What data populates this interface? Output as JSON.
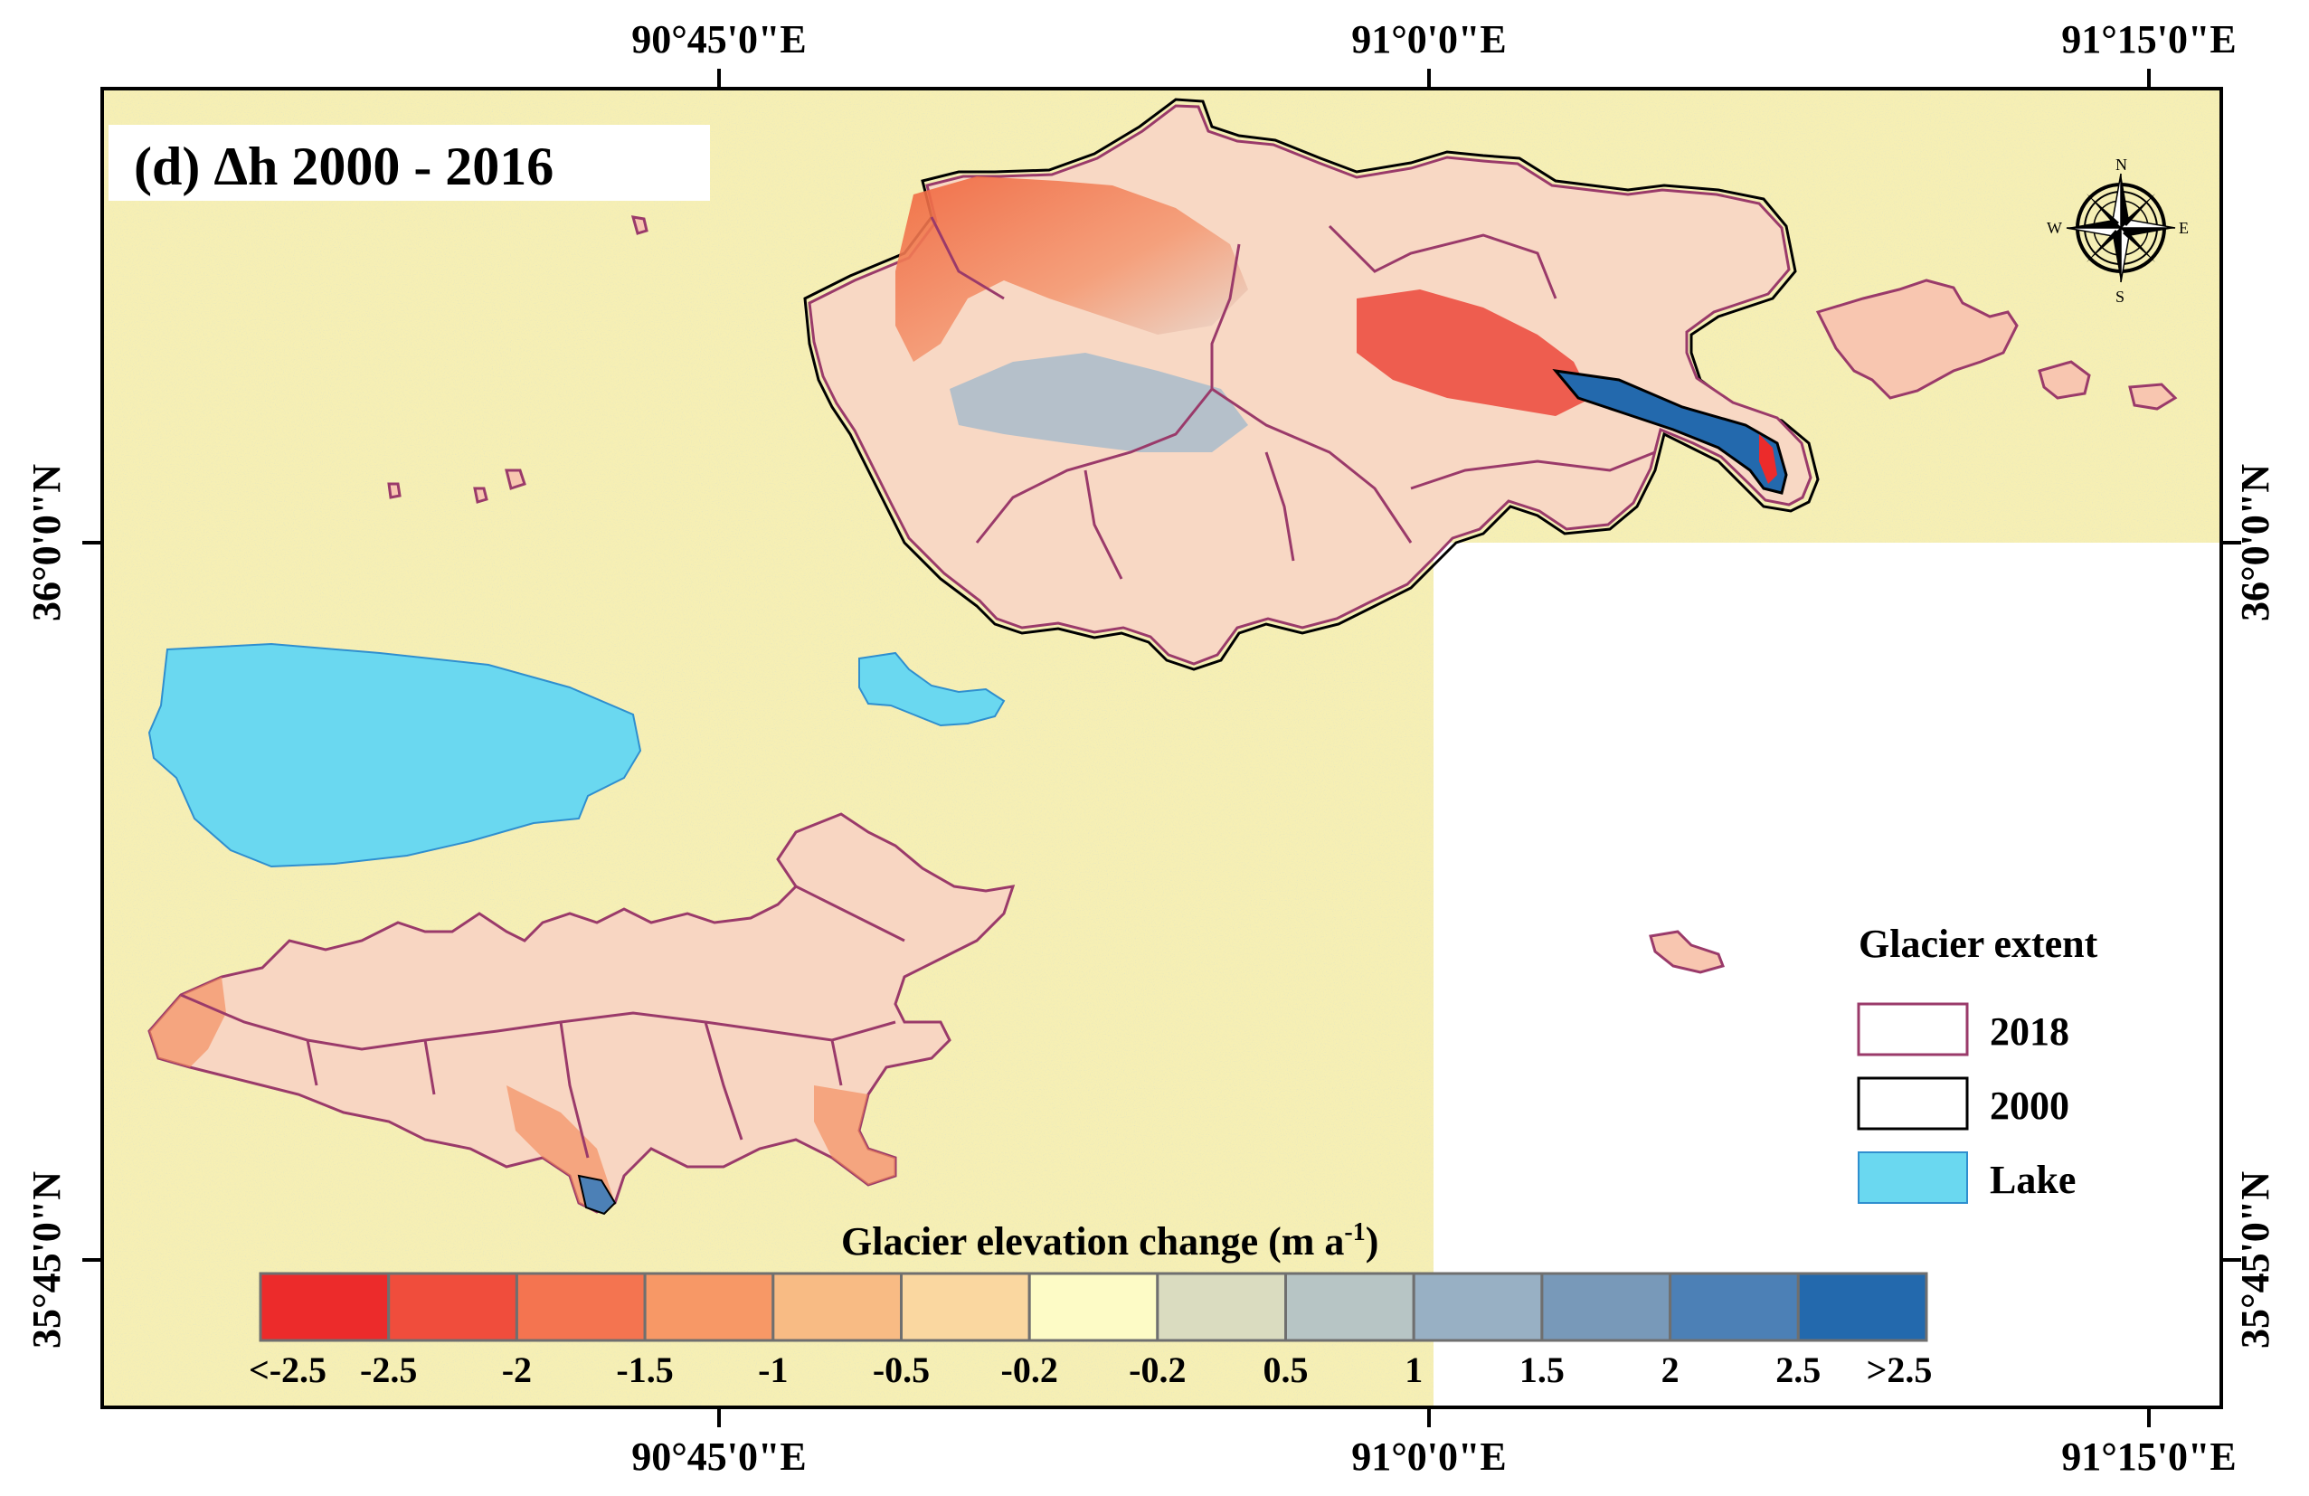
{
  "map": {
    "title": "(d) Δh 2000 - 2016",
    "top_lon_labels": [
      "90°45'0\"E",
      "91°0'0\"E",
      "91°15'0\"E"
    ],
    "bottom_lon_labels": [
      "90°45'0\"E",
      "91°0'0\"E",
      "91°15'0\"E"
    ],
    "left_lat_labels": [
      "36°0'0\"N",
      "35°45'0\"N"
    ],
    "right_lat_labels": [
      "36°0'0\"N",
      "35°45'0\"N"
    ],
    "colors": {
      "background": "#f6efb4",
      "lake": "#6ad8f0",
      "outline_2018": "#9a3a6a",
      "outline_2000": "#000000",
      "nodata": "#ffffff"
    }
  },
  "compass": {
    "n": "N",
    "s": "S",
    "e": "E",
    "w": "W"
  },
  "legend": {
    "title": "Glacier extent",
    "items": [
      {
        "label": "2018",
        "symbol": "outline-purple"
      },
      {
        "label": "2000",
        "symbol": "outline-black"
      },
      {
        "label": "Lake",
        "symbol": "fill-lake"
      }
    ]
  },
  "colorbar": {
    "title_text": "Glacier elevation change (m a",
    "title_sup": "-1",
    "title_end": ")",
    "colors": [
      "#ec2b2b",
      "#f04d3c",
      "#f47450",
      "#f79866",
      "#f8bb84",
      "#fad7a0",
      "#fdfbc6",
      "#dadcc0",
      "#b7c5c5",
      "#98b0c4",
      "#7899b9",
      "#4c80b6",
      "#2369ad"
    ],
    "labels": [
      "<-2.5",
      "-2.5",
      "-2",
      "-1.5",
      "-1",
      "-0.5",
      "-0.2",
      "-0.2",
      "0.5",
      "1",
      "1.5",
      "2",
      "2.5",
      ">2.5"
    ]
  }
}
